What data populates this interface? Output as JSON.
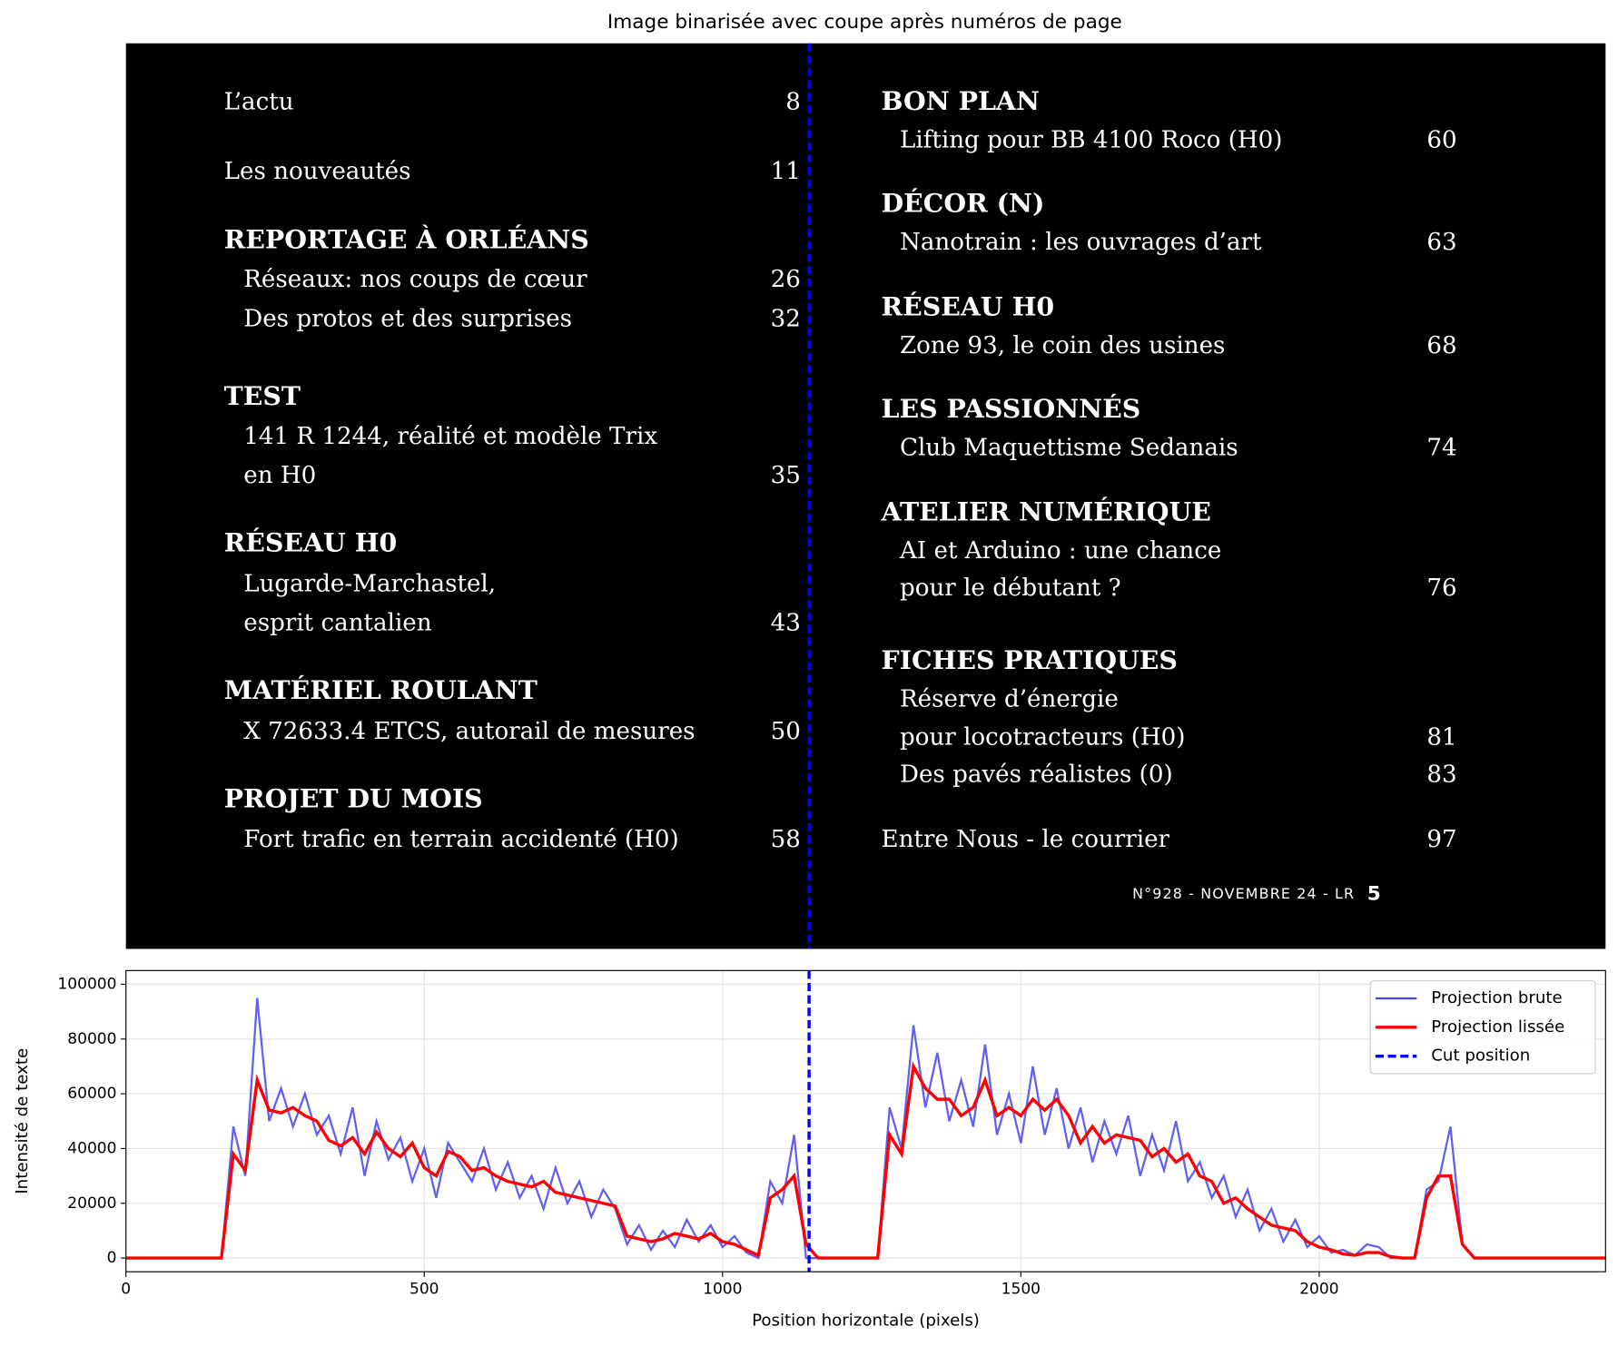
{
  "chart_data": [
    {
      "type": "image",
      "title": "Image binarisée avec coupe après numéros de page",
      "toc": {
        "left": [
          {
            "items": [
              {
                "lines": [
                  "L’actu"
                ],
                "page": "8"
              }
            ]
          },
          {
            "items": [
              {
                "lines": [
                  "Les nouveautés"
                ],
                "page": "11"
              }
            ]
          },
          {
            "heading": "REPORTAGE À ORLÉANS",
            "items": [
              {
                "lines": [
                  "Réseaux: nos coups de cœur"
                ],
                "page": "26"
              },
              {
                "lines": [
                  "Des protos et des surprises"
                ],
                "page": "32"
              }
            ]
          },
          {
            "heading": "TEST",
            "items": [
              {
                "lines": [
                  "141 R 1244, réalité et modèle Trix",
                  "en H0"
                ],
                "page": "35"
              }
            ]
          },
          {
            "heading": "RÉSEAU H0",
            "items": [
              {
                "lines": [
                  "Lugarde-Marchastel,",
                  "esprit cantalien"
                ],
                "page": "43"
              }
            ]
          },
          {
            "heading": "MATÉRIEL ROULANT",
            "items": [
              {
                "lines": [
                  "X 72633.4 ETCS, autorail de mesures"
                ],
                "page": "50"
              }
            ]
          },
          {
            "heading": "PROJET DU MOIS",
            "items": [
              {
                "lines": [
                  "Fort trafic en terrain accidenté (H0)"
                ],
                "page": "58"
              }
            ]
          }
        ],
        "right": [
          {
            "heading": "BON PLAN",
            "items": [
              {
                "lines": [
                  "Lifting pour BB 4100 Roco (H0)"
                ],
                "page": "60"
              }
            ]
          },
          {
            "heading": "DÉCOR (N)",
            "items": [
              {
                "lines": [
                  "Nanotrain : les ouvrages d’art"
                ],
                "page": "63"
              }
            ]
          },
          {
            "heading": "RÉSEAU H0",
            "items": [
              {
                "lines": [
                  "Zone 93, le coin des usines"
                ],
                "page": "68"
              }
            ]
          },
          {
            "heading": "LES PASSIONNÉS",
            "items": [
              {
                "lines": [
                  "Club Maquettisme Sedanais"
                ],
                "page": "74"
              }
            ]
          },
          {
            "heading": "ATELIER NUMÉRIQUE",
            "items": [
              {
                "lines": [
                  "AI et Arduino : une chance",
                  "pour le débutant ?"
                ],
                "page": "76"
              }
            ]
          },
          {
            "heading": "FICHES PRATIQUES",
            "items": [
              {
                "lines": [
                  "Réserve d’énergie",
                  "pour locotracteurs (H0)"
                ],
                "page": "81"
              },
              {
                "lines": [
                  "Des pavés réalistes (0)"
                ],
                "page": "83"
              }
            ]
          },
          {
            "items": [
              {
                "lines": [
                  "Entre Nous - le courrier"
                ],
                "page": "97"
              }
            ]
          }
        ],
        "footer": {
          "text": "N°928 - NOVEMBRE 24 - LR",
          "page": "5"
        }
      }
    },
    {
      "type": "line",
      "xlabel": "Position horizontale (pixels)",
      "ylabel": "Intensité de texte",
      "xlim": [
        0,
        2480
      ],
      "ylim": [
        -5000,
        105000
      ],
      "xticks": [
        0,
        500,
        1000,
        1500,
        2000
      ],
      "yticks": [
        0,
        20000,
        40000,
        60000,
        80000,
        100000
      ],
      "grid": true,
      "legend": "upper right",
      "x": [
        0,
        160,
        180,
        200,
        220,
        240,
        260,
        280,
        300,
        320,
        340,
        360,
        380,
        400,
        420,
        440,
        460,
        480,
        500,
        520,
        540,
        560,
        580,
        600,
        620,
        640,
        660,
        680,
        700,
        720,
        740,
        760,
        780,
        800,
        820,
        840,
        860,
        880,
        900,
        920,
        940,
        960,
        980,
        1000,
        1020,
        1040,
        1060,
        1080,
        1100,
        1120,
        1140,
        1160,
        1260,
        1280,
        1300,
        1320,
        1340,
        1360,
        1380,
        1400,
        1420,
        1440,
        1460,
        1480,
        1500,
        1520,
        1540,
        1560,
        1580,
        1600,
        1620,
        1640,
        1660,
        1680,
        1700,
        1720,
        1740,
        1760,
        1780,
        1800,
        1820,
        1840,
        1860,
        1880,
        1900,
        1920,
        1940,
        1960,
        1980,
        2000,
        2020,
        2040,
        2060,
        2080,
        2100,
        2120,
        2140,
        2160,
        2180,
        2200,
        2220,
        2240,
        2260,
        2480
      ],
      "series": [
        {
          "name": "Projection brute",
          "color": "#4444ee",
          "values": [
            0,
            0,
            48000,
            30000,
            95000,
            50000,
            62000,
            48000,
            60000,
            45000,
            52000,
            38000,
            55000,
            30000,
            50000,
            36000,
            44000,
            28000,
            40000,
            22000,
            42000,
            35000,
            28000,
            40000,
            25000,
            35000,
            22000,
            30000,
            18000,
            33000,
            20000,
            28000,
            15000,
            25000,
            18000,
            5000,
            12000,
            3000,
            10000,
            4000,
            14000,
            6000,
            12000,
            4000,
            8000,
            2000,
            0,
            28000,
            20000,
            45000,
            0,
            0,
            0,
            55000,
            40000,
            85000,
            55000,
            75000,
            50000,
            65000,
            48000,
            78000,
            45000,
            60000,
            42000,
            70000,
            45000,
            62000,
            40000,
            55000,
            35000,
            50000,
            38000,
            52000,
            30000,
            45000,
            32000,
            50000,
            28000,
            35000,
            22000,
            30000,
            15000,
            25000,
            10000,
            18000,
            6000,
            14000,
            4000,
            8000,
            2000,
            3000,
            1000,
            5000,
            4000,
            0,
            0,
            0,
            25000,
            28000,
            48000,
            5000,
            0,
            0
          ]
        },
        {
          "name": "Projection lissée",
          "color": "#ff0000",
          "values": [
            0,
            0,
            38000,
            32000,
            65000,
            54000,
            53000,
            55000,
            52000,
            50000,
            43000,
            41000,
            44000,
            38000,
            46000,
            40000,
            37000,
            42000,
            33000,
            30000,
            39000,
            37000,
            32000,
            33000,
            30000,
            28000,
            27000,
            26000,
            28000,
            24000,
            23000,
            22000,
            21000,
            20000,
            19000,
            8000,
            7000,
            6000,
            7000,
            9000,
            8000,
            7000,
            9000,
            6000,
            5000,
            3000,
            1000,
            22000,
            25000,
            30000,
            5000,
            0,
            0,
            45000,
            38000,
            70000,
            62000,
            58000,
            58000,
            52000,
            55000,
            65000,
            52000,
            55000,
            52000,
            58000,
            54000,
            58000,
            52000,
            42000,
            48000,
            42000,
            45000,
            44000,
            43000,
            37000,
            40000,
            35000,
            38000,
            30000,
            28000,
            20000,
            22000,
            18000,
            15000,
            12000,
            11000,
            10000,
            6000,
            4000,
            3000,
            1500,
            1000,
            2000,
            2000,
            500,
            0,
            0,
            22000,
            30000,
            30000,
            5000,
            0,
            0
          ]
        }
      ],
      "vlines": [
        {
          "name": "Cut position",
          "color": "#0000ff",
          "x": 1145
        }
      ]
    }
  ]
}
